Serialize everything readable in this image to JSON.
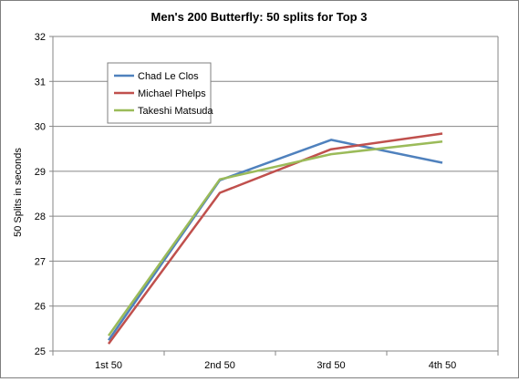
{
  "chart_data": {
    "type": "line",
    "title": "Men's 200 Butterfly: 50 splits for Top 3",
    "xlabel": "",
    "ylabel": "50 Splits in seconds",
    "categories": [
      "1st 50",
      "2nd 50",
      "3rd 50",
      "4th 50"
    ],
    "ylim": [
      25,
      32
    ],
    "yticks": [
      "25",
      "26",
      "27",
      "28",
      "29",
      "30",
      "31",
      "32"
    ],
    "grid": true,
    "legend_position": "top-left",
    "series": [
      {
        "name": "Chad Le Clos",
        "color": "#4f81bd",
        "values": [
          25.24,
          28.8,
          29.7,
          29.19
        ]
      },
      {
        "name": "Michael Phelps",
        "color": "#c0504d",
        "values": [
          25.16,
          28.52,
          29.49,
          29.84
        ]
      },
      {
        "name": "Takeshi Matsuda",
        "color": "#9bbb59",
        "values": [
          25.34,
          28.82,
          29.38,
          29.66
        ]
      }
    ]
  }
}
